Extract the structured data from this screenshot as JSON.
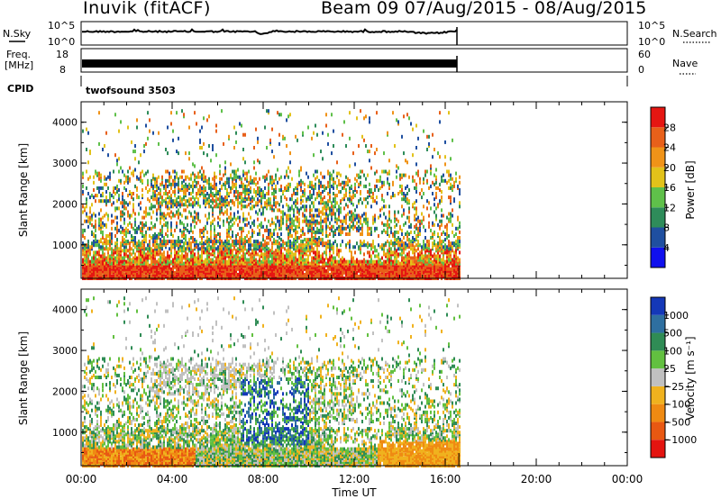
{
  "header": {
    "station": "Inuvik (fitACF)",
    "beam_date": "Beam 09  07/Aug/2015 - 08/Aug/2015"
  },
  "panels": {
    "nsky_label": "N.Sky",
    "nsearch_label": "N.Search",
    "nsky_ticks": [
      "10^5",
      "10^0"
    ],
    "nsearch_ticks": [
      "10^5",
      "10^0"
    ],
    "freq_label": "Freq.",
    "freq_unit": "[MHz]",
    "freq_ticks": [
      "18",
      "8"
    ],
    "nave_label": "Nave",
    "nave_ticks": [
      "60",
      "0"
    ],
    "cpid_label": "CPID",
    "cpid_value": "twofsound 3503"
  },
  "chart_data": [
    {
      "type": "heatmap",
      "name": "power",
      "ylabel": "Slant Range [km]",
      "xlabel": "Time UT",
      "ylim": [
        180,
        4500
      ],
      "xlim_hours": [
        0,
        24
      ],
      "y_ticks": [
        "1000",
        "2000",
        "3000",
        "4000"
      ],
      "x_ticks": [
        "00:00",
        "04:00",
        "08:00",
        "12:00",
        "16:00",
        "20:00",
        "00:00"
      ],
      "data_end_hour": 16.6,
      "colorbar_label": "Power [dB]",
      "colorbar_ticks": [
        "4",
        "8",
        "12",
        "16",
        "20",
        "24",
        "28"
      ],
      "colors": [
        "#1010ee",
        "#1f4fa0",
        "#2e8c5a",
        "#5fc04a",
        "#e2c21a",
        "#f09318",
        "#e8601a",
        "#e51612"
      ]
    },
    {
      "type": "heatmap",
      "name": "velocity",
      "ylabel": "Slant Range [km]",
      "xlabel": "Time UT",
      "ylim": [
        180,
        4500
      ],
      "xlim_hours": [
        0,
        24
      ],
      "y_ticks": [
        "1000",
        "2000",
        "3000",
        "4000"
      ],
      "x_ticks": [
        "00:00",
        "04:00",
        "08:00",
        "12:00",
        "16:00",
        "20:00",
        "00:00"
      ],
      "data_end_hour": 16.6,
      "colorbar_label": "Velocity [m s⁻¹]",
      "colorbar_ticks": [
        "1000",
        "500",
        "100",
        "25",
        "−25",
        "−100",
        "−500",
        "−1000"
      ],
      "colors": [
        "#1438b8",
        "#2e6fa0",
        "#2f8c55",
        "#62c040",
        "#c0c0c0",
        "#f0b21e",
        "#ef8a12",
        "#e85812",
        "#e41410"
      ]
    }
  ]
}
